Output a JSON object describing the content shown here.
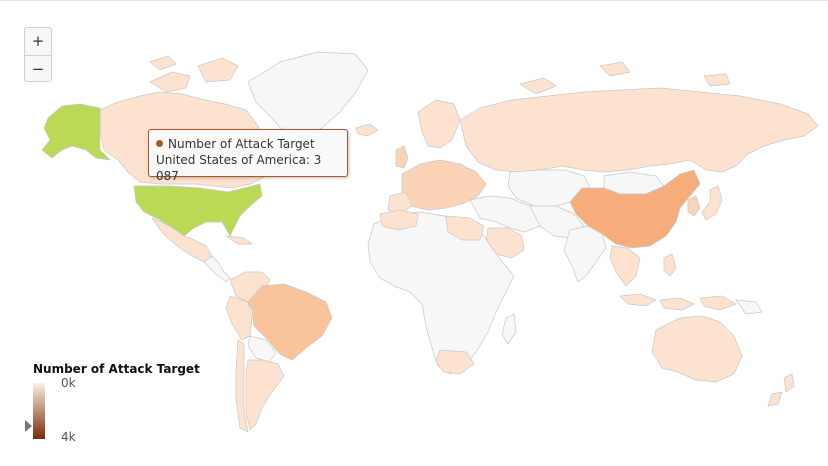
{
  "zoom": {
    "in_label": "+",
    "out_label": "−"
  },
  "tooltip": {
    "series_name": "Number of Attack Target",
    "line": "United States of America: 3 087",
    "dot_color": "#a65a2a"
  },
  "legend": {
    "title": "Number of Attack Target",
    "min_label": "0k",
    "max_label": "4k",
    "min_color": "#fdf0e6",
    "max_color": "#7a2a06",
    "marker_value_fraction": 0.77
  },
  "colors": {
    "no_data": "#f7f7f7",
    "low": "#fde3cf",
    "medium_low": "#fbd4b7",
    "medium": "#f9c39c",
    "china": "#f6ad7b",
    "hover": "#bada55",
    "border": "#c8c8c8"
  }
}
